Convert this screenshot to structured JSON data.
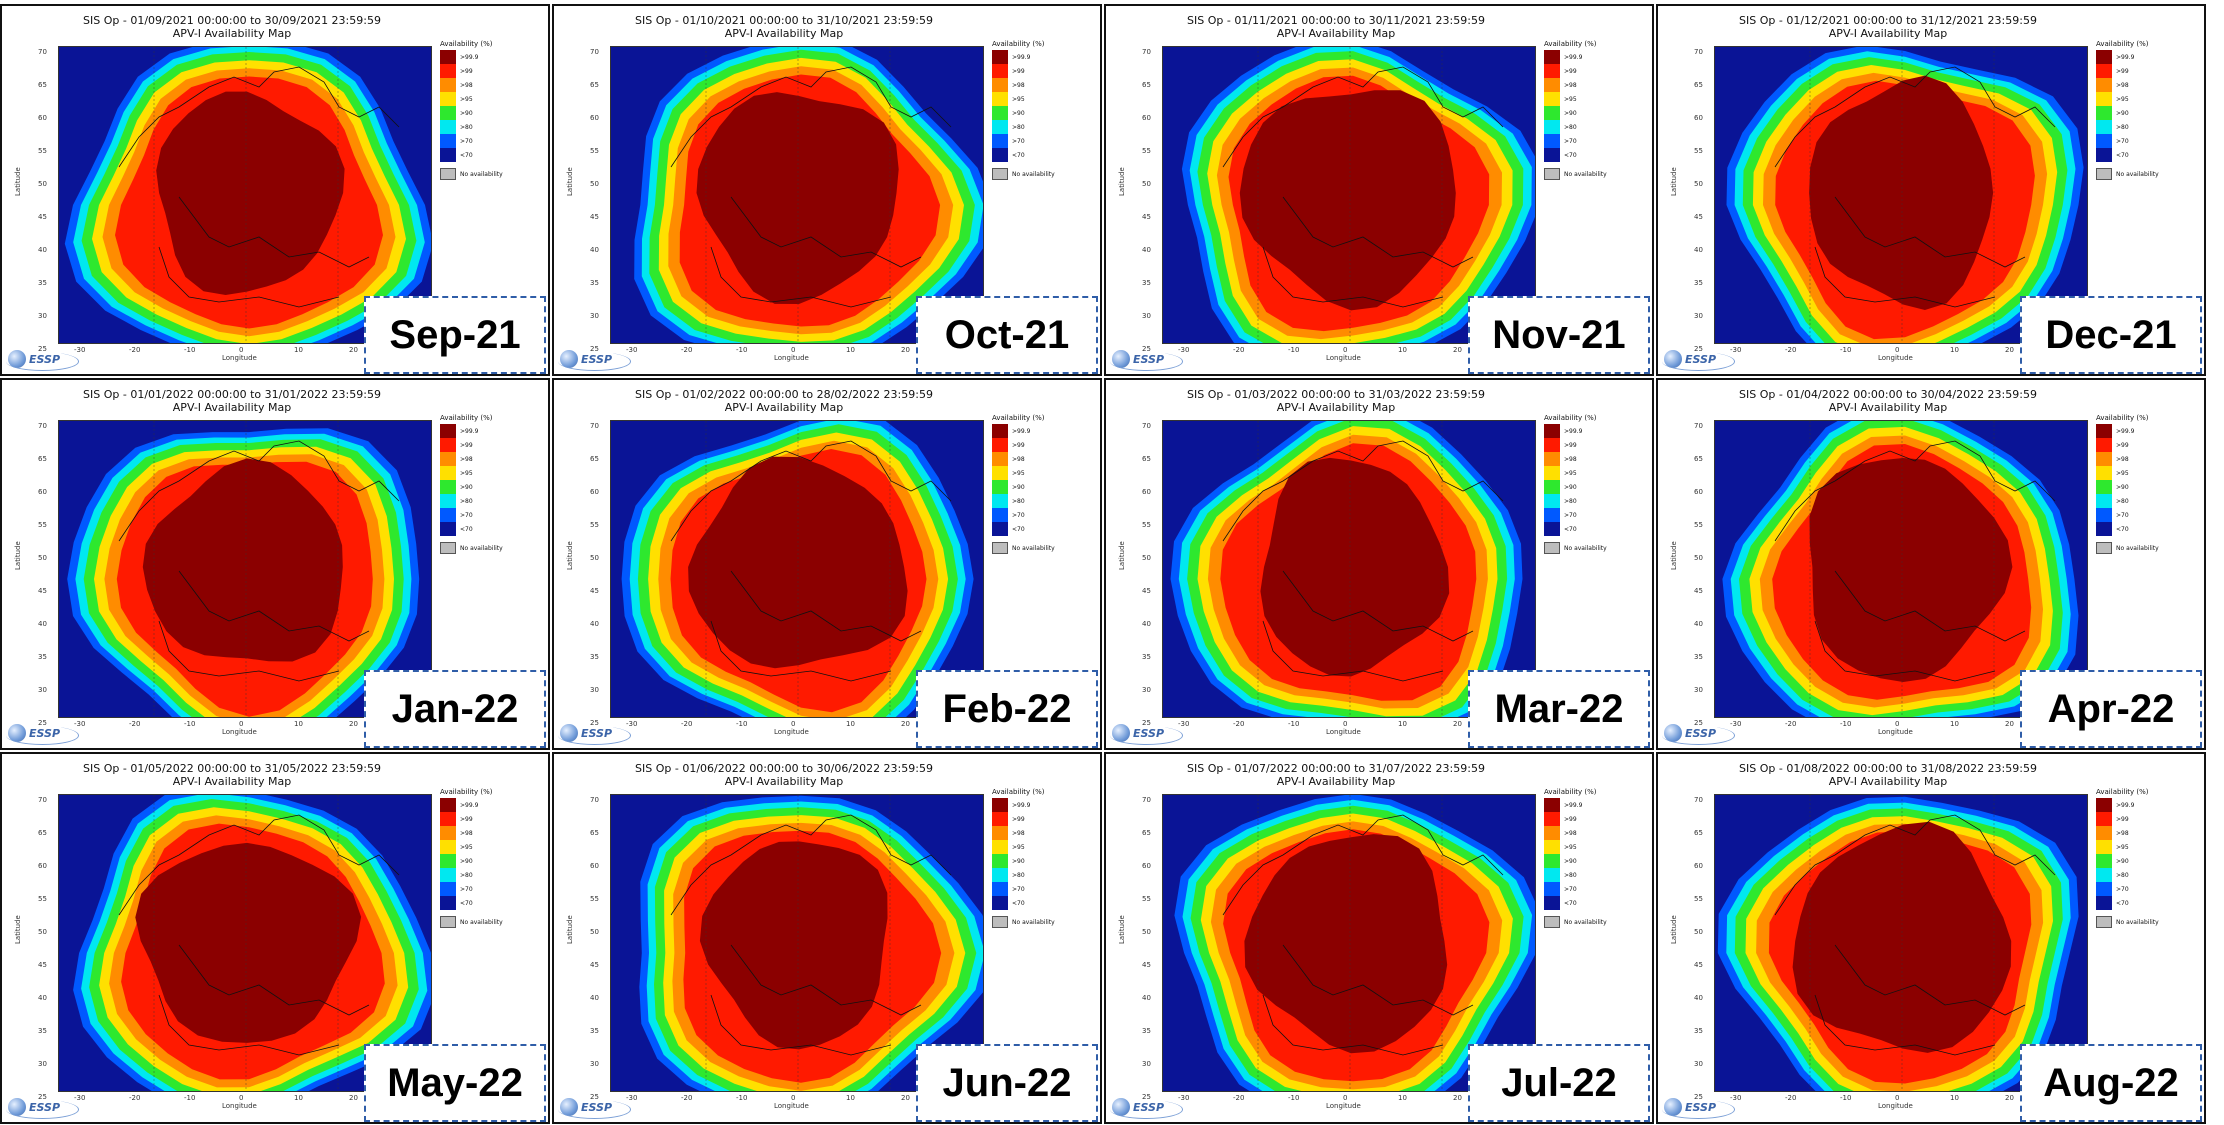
{
  "colors": {
    "dark_red": "#8b0000",
    "red": "#ff1a00",
    "orange": "#ff8c00",
    "yellow": "#ffe000",
    "green": "#2ee82e",
    "cyan": "#00e8f0",
    "blue": "#0059ff",
    "navy": "#0a1496",
    "no_availability": "#bdbdbd",
    "month_box_border": "#2f5da8"
  },
  "plot_subtitle": "APV-I Availability Map",
  "xlabel": "Longitude",
  "ylabel": "Latitude",
  "y_ticks": [
    "70",
    "65",
    "60",
    "55",
    "50",
    "45",
    "40",
    "35",
    "30",
    "25"
  ],
  "x_ticks": [
    "-30",
    "-20",
    "-10",
    "0",
    "10",
    "20"
  ],
  "legend": {
    "title": "Availability (%)",
    "items": [
      {
        "label": ">99.9",
        "color": "#8b0000"
      },
      {
        "label": ">99",
        "color": "#ff1a00"
      },
      {
        "label": ">98",
        "color": "#ff8c00"
      },
      {
        "label": ">95",
        "color": "#ffe000"
      },
      {
        "label": ">90",
        "color": "#2ee82e"
      },
      {
        "label": ">80",
        "color": "#00e8f0"
      },
      {
        "label": ">70",
        "color": "#0059ff"
      },
      {
        "label": "<70",
        "color": "#0a1496"
      }
    ],
    "no_availability": "No availability"
  },
  "logo_text": "ESSP",
  "panels": [
    {
      "title": "SIS Op - 01/09/2021 00:00:00 to 30/09/2021 23:59:59",
      "month": "Sep-21"
    },
    {
      "title": "SIS Op - 01/10/2021 00:00:00 to 31/10/2021 23:59:59",
      "month": "Oct-21"
    },
    {
      "title": "SIS Op - 01/11/2021 00:00:00 to 30/11/2021 23:59:59",
      "month": "Nov-21"
    },
    {
      "title": "SIS Op - 01/12/2021 00:00:00 to 31/12/2021 23:59:59",
      "month": "Dec-21"
    },
    {
      "title": "SIS Op - 01/01/2022 00:00:00 to 31/01/2022 23:59:59",
      "month": "Jan-22"
    },
    {
      "title": "SIS Op - 01/02/2022 00:00:00 to 28/02/2022 23:59:59",
      "month": "Feb-22"
    },
    {
      "title": "SIS Op - 01/03/2022 00:00:00 to 31/03/2022 23:59:59",
      "month": "Mar-22"
    },
    {
      "title": "SIS Op - 01/04/2022 00:00:00 to 30/04/2022 23:59:59",
      "month": "Apr-22"
    },
    {
      "title": "SIS Op - 01/05/2022 00:00:00 to 31/05/2022 23:59:59",
      "month": "May-22"
    },
    {
      "title": "SIS Op - 01/06/2022 00:00:00 to 30/06/2022 23:59:59",
      "month": "Jun-22"
    },
    {
      "title": "SIS Op - 01/07/2022 00:00:00 to 31/07/2022 23:59:59",
      "month": "Jul-22"
    },
    {
      "title": "SIS Op - 01/08/2022 00:00:00 to 31/08/2022 23:59:59",
      "month": "Aug-22"
    }
  ]
}
